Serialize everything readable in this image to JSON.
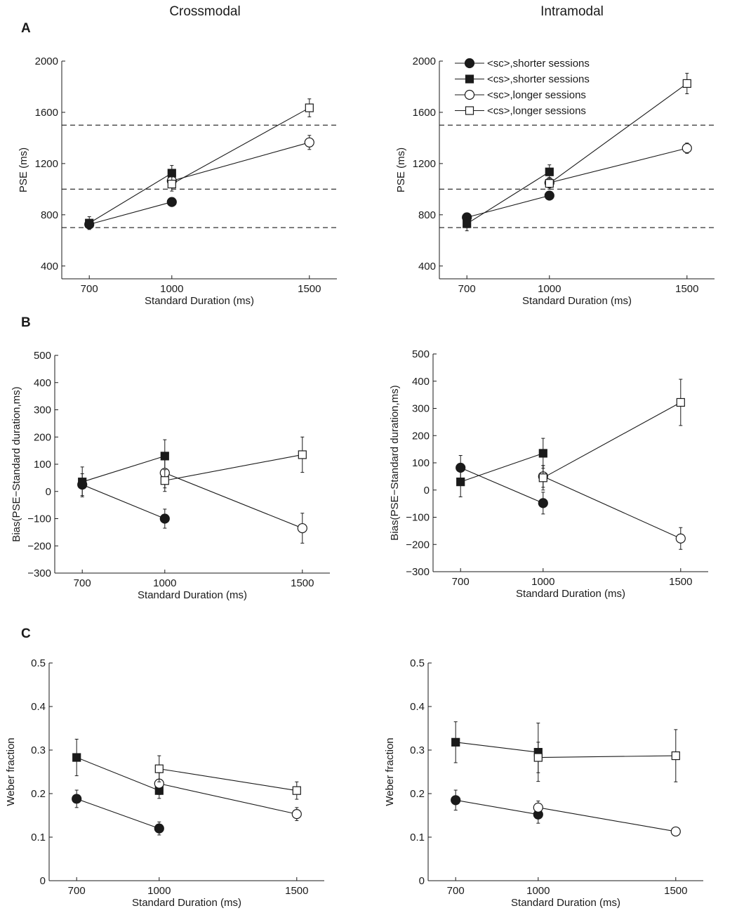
{
  "column_titles": [
    "Crossmodal",
    "Intramodal"
  ],
  "panel_letters": [
    "A",
    "B",
    "C"
  ],
  "legend": [
    {
      "label": "<sc>,shorter sessions",
      "marker": "circle",
      "fill": "filled"
    },
    {
      "label": "<cs>,shorter sessions",
      "marker": "square",
      "fill": "filled"
    },
    {
      "label": "<sc>,longer sessions",
      "marker": "circle",
      "fill": "open"
    },
    {
      "label": "<cs>,longer sessions",
      "marker": "square",
      "fill": "open"
    }
  ],
  "colors": {
    "ink": "#1a1a1a",
    "open_fill": "#ffffff",
    "background": "#ffffff"
  },
  "chart_data": [
    {
      "id": "A-cross",
      "type": "line",
      "panel": "A",
      "column": "Crossmodal",
      "xlabel": "Standard Duration (ms)",
      "ylabel": "PSE (ms)",
      "x": [
        700,
        1000,
        1500
      ],
      "xlim": [
        600,
        1600
      ],
      "ylim": [
        300,
        2000
      ],
      "yticks": [
        400,
        800,
        1200,
        1600,
        2000
      ],
      "xticks": [
        700,
        1000,
        1500
      ],
      "reference_lines": [
        700,
        1000,
        1500
      ],
      "series": [
        {
          "name": "<sc>,shorter sessions",
          "x": [
            700,
            1000
          ],
          "values": [
            725,
            900
          ],
          "err": [
            20,
            20
          ]
        },
        {
          "name": "<cs>,shorter sessions",
          "x": [
            700,
            1000
          ],
          "values": [
            735,
            1125
          ],
          "err": [
            50,
            60
          ]
        },
        {
          "name": "<sc>,longer sessions",
          "x": [
            1000,
            1500
          ],
          "values": [
            1065,
            1365
          ],
          "err": [
            50,
            55
          ]
        },
        {
          "name": "<cs>,longer sessions",
          "x": [
            1000,
            1500
          ],
          "values": [
            1040,
            1635
          ],
          "err": [
            55,
            70
          ]
        }
      ]
    },
    {
      "id": "A-intra",
      "type": "line",
      "panel": "A",
      "column": "Intramodal",
      "xlabel": "Standard Duration (ms)",
      "ylabel": "PSE (ms)",
      "x": [
        700,
        1000,
        1500
      ],
      "xlim": [
        600,
        1600
      ],
      "ylim": [
        300,
        2000
      ],
      "yticks": [
        400,
        800,
        1200,
        1600,
        2000
      ],
      "xticks": [
        700,
        1000,
        1500
      ],
      "reference_lines": [
        700,
        1000,
        1500
      ],
      "series": [
        {
          "name": "<sc>,shorter sessions",
          "x": [
            700,
            1000
          ],
          "values": [
            780,
            950
          ],
          "err": [
            30,
            30
          ]
        },
        {
          "name": "<cs>,shorter sessions",
          "x": [
            700,
            1000
          ],
          "values": [
            730,
            1135
          ],
          "err": [
            55,
            55
          ]
        },
        {
          "name": "<sc>,longer sessions",
          "x": [
            1000,
            1500
          ],
          "values": [
            1050,
            1320
          ],
          "err": [
            40,
            40
          ]
        },
        {
          "name": "<cs>,longer sessions",
          "x": [
            1000,
            1500
          ],
          "values": [
            1045,
            1825
          ],
          "err": [
            45,
            80
          ]
        }
      ]
    },
    {
      "id": "B-cross",
      "type": "line",
      "panel": "B",
      "column": "Crossmodal",
      "xlabel": "Standard Duration (ms)",
      "ylabel": "Bias(PSE−Standard duration,ms)",
      "x": [
        700,
        1000,
        1500
      ],
      "xlim": [
        600,
        1600
      ],
      "ylim": [
        -300,
        500
      ],
      "yticks": [
        -300,
        -200,
        -100,
        0,
        100,
        200,
        300,
        400,
        500
      ],
      "xticks": [
        700,
        1000,
        1500
      ],
      "series": [
        {
          "name": "<sc>,shorter sessions",
          "x": [
            700,
            1000
          ],
          "values": [
            25,
            -100
          ],
          "err": [
            40,
            35
          ]
        },
        {
          "name": "<cs>,shorter sessions",
          "x": [
            700,
            1000
          ],
          "values": [
            35,
            130
          ],
          "err": [
            55,
            60
          ]
        },
        {
          "name": "<sc>,longer sessions",
          "x": [
            1000,
            1500
          ],
          "values": [
            68,
            -135
          ],
          "err": [
            55,
            55
          ]
        },
        {
          "name": "<cs>,longer sessions",
          "x": [
            1000,
            1500
          ],
          "values": [
            40,
            135
          ],
          "err": [
            40,
            65
          ]
        }
      ]
    },
    {
      "id": "B-intra",
      "type": "line",
      "panel": "B",
      "column": "Intramodal",
      "xlabel": "Standard Duration (ms)",
      "ylabel": "Bias(PSE−Standard duration,ms)",
      "x": [
        700,
        1000,
        1500
      ],
      "xlim": [
        600,
        1600
      ],
      "ylim": [
        -300,
        500
      ],
      "yticks": [
        -300,
        -200,
        -100,
        0,
        100,
        200,
        300,
        400,
        500
      ],
      "xticks": [
        700,
        1000,
        1500
      ],
      "series": [
        {
          "name": "<sc>,shorter sessions",
          "x": [
            700,
            1000
          ],
          "values": [
            82,
            -48
          ],
          "err": [
            45,
            40
          ]
        },
        {
          "name": "<cs>,shorter sessions",
          "x": [
            700,
            1000
          ],
          "values": [
            30,
            135
          ],
          "err": [
            55,
            55
          ]
        },
        {
          "name": "<sc>,longer sessions",
          "x": [
            1000,
            1500
          ],
          "values": [
            50,
            -178
          ],
          "err": [
            40,
            40
          ]
        },
        {
          "name": "<cs>,longer sessions",
          "x": [
            1000,
            1500
          ],
          "values": [
            45,
            322
          ],
          "err": [
            45,
            85
          ]
        }
      ]
    },
    {
      "id": "C-cross",
      "type": "line",
      "panel": "C",
      "column": "Crossmodal",
      "xlabel": "Standard Duration (ms)",
      "ylabel": "Weber fraction",
      "x": [
        700,
        1000,
        1500
      ],
      "xlim": [
        600,
        1600
      ],
      "ylim": [
        0,
        0.5
      ],
      "yticks": [
        0,
        0.1,
        0.2,
        0.3,
        0.4,
        0.5
      ],
      "xticks": [
        700,
        1000,
        1500
      ],
      "series": [
        {
          "name": "<sc>,shorter sessions",
          "x": [
            700,
            1000
          ],
          "values": [
            0.188,
            0.12
          ],
          "err": [
            0.02,
            0.015
          ]
        },
        {
          "name": "<cs>,shorter sessions",
          "x": [
            700,
            1000
          ],
          "values": [
            0.283,
            0.207
          ],
          "err": [
            0.042,
            0.018
          ]
        },
        {
          "name": "<sc>,longer sessions",
          "x": [
            1000,
            1500
          ],
          "values": [
            0.223,
            0.153
          ],
          "err": [
            0.025,
            0.015
          ]
        },
        {
          "name": "<cs>,longer sessions",
          "x": [
            1000,
            1500
          ],
          "values": [
            0.257,
            0.207
          ],
          "err": [
            0.03,
            0.02
          ]
        }
      ]
    },
    {
      "id": "C-intra",
      "type": "line",
      "panel": "C",
      "column": "Intramodal",
      "xlabel": "Standard Duration (ms)",
      "ylabel": "Weber fraction",
      "x": [
        700,
        1000,
        1500
      ],
      "xlim": [
        600,
        1600
      ],
      "ylim": [
        0,
        0.5
      ],
      "yticks": [
        0,
        0.1,
        0.2,
        0.3,
        0.4,
        0.5
      ],
      "xticks": [
        700,
        1000,
        1500
      ],
      "series": [
        {
          "name": "<sc>,shorter sessions",
          "x": [
            700,
            1000
          ],
          "values": [
            0.185,
            0.152
          ],
          "err": [
            0.023,
            0.02
          ]
        },
        {
          "name": "<cs>,shorter sessions",
          "x": [
            700,
            1000
          ],
          "values": [
            0.318,
            0.295
          ],
          "err": [
            0.047,
            0.067
          ]
        },
        {
          "name": "<sc>,longer sessions",
          "x": [
            1000,
            1500
          ],
          "values": [
            0.168,
            0.113
          ],
          "err": [
            0.015,
            0.008
          ]
        },
        {
          "name": "<cs>,longer sessions",
          "x": [
            1000,
            1500
          ],
          "values": [
            0.283,
            0.287
          ],
          "err": [
            0.035,
            0.06
          ]
        }
      ]
    }
  ]
}
